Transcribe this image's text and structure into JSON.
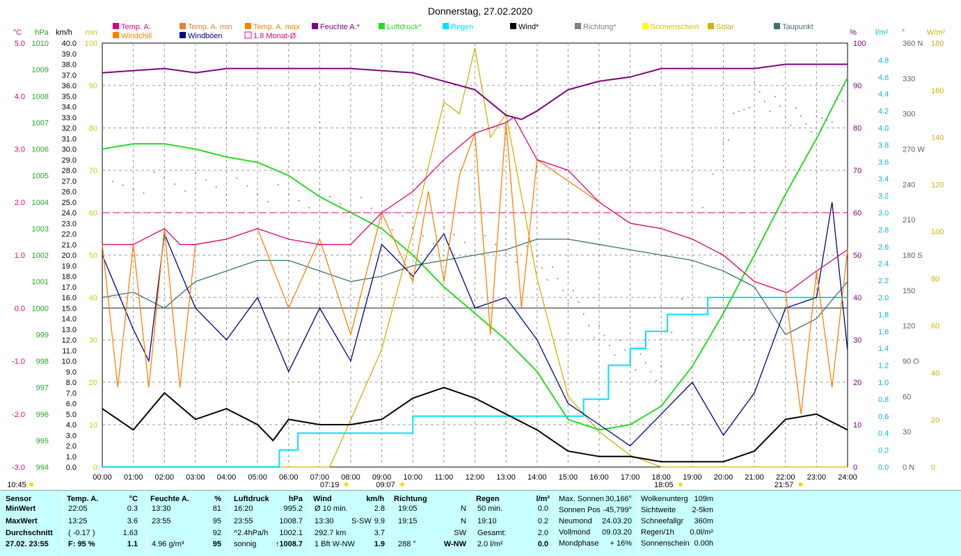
{
  "title": "Donnerstag, 27.02.2020",
  "legend": [
    {
      "label": "Temp. A.",
      "color": "#e0007a",
      "row": 0,
      "col": 0,
      "box": "solid"
    },
    {
      "label": "Temp. A. min",
      "color": "#ee7a30",
      "row": 0,
      "col": 1,
      "box": "solid"
    },
    {
      "label": "Temp. A. max",
      "color": "#ff7f00",
      "row": 0,
      "col": 2,
      "box": "solid"
    },
    {
      "label": "Feuchte A.*",
      "color": "#800080",
      "row": 0,
      "col": 3,
      "box": "solid"
    },
    {
      "label": "Luftdruck*",
      "color": "#22dd22",
      "row": 0,
      "col": 4,
      "box": "solid"
    },
    {
      "label": "Regen",
      "color": "#00e0ff",
      "row": 0,
      "col": 5,
      "box": "solid"
    },
    {
      "label": "Wind*",
      "color": "#000000",
      "row": 0,
      "col": 6,
      "box": "solid"
    },
    {
      "label": "Richtung*",
      "color": "#808080",
      "row": 0,
      "col": 7,
      "box": "solid"
    },
    {
      "label": "Sonnenschein",
      "color": "#ffff00",
      "row": 0,
      "col": 8,
      "box": "solid"
    },
    {
      "label": "Solar",
      "color": "#d4b000",
      "row": 0,
      "col": 9,
      "box": "solid"
    },
    {
      "label": "Taupunkt",
      "color": "#3a7070",
      "row": 0,
      "col": 10,
      "box": "solid"
    },
    {
      "label": "Windchill",
      "color": "#ff7f00",
      "row": 1,
      "col": 0,
      "box": "solid"
    },
    {
      "label": "Windböen",
      "color": "#000080",
      "row": 1,
      "col": 1,
      "box": "solid"
    },
    {
      "label": "1.8 Monat-Ø",
      "color": "#e0007a",
      "row": 1,
      "col": 2,
      "box": "hollow"
    }
  ],
  "axes": {
    "temp": {
      "unit": "°C",
      "ticks": [
        "5.0",
        "4.0",
        "3.0",
        "2.0",
        "1.0",
        "0.0",
        "-1.0",
        "-2.0",
        "-3.0"
      ],
      "color": "#e0007a"
    },
    "pressure": {
      "unit": "hPa",
      "ticks": [
        "1010",
        "1009",
        "1008",
        "1007",
        "1006",
        "1005",
        "1004",
        "1003",
        "1002",
        "1001",
        "1000",
        "999",
        "998",
        "997",
        "996",
        "995",
        "994"
      ],
      "color": "#22aa22"
    },
    "wind": {
      "unit": "km/h",
      "ticks": [
        "40.0",
        "39.0",
        "38.0",
        "37.0",
        "36.0",
        "35.0",
        "34.0",
        "33.0",
        "32.0",
        "31.0",
        "30.0",
        "29.0",
        "28.0",
        "27.0",
        "26.0",
        "25.0",
        "24.0",
        "23.0",
        "22.0",
        "21.0",
        "20.0",
        "19.0",
        "18.0",
        "17.0",
        "16.0",
        "15.0",
        "14.0",
        "13.0",
        "12.0",
        "11.0",
        "10.0",
        "9.0",
        "8.0",
        "7.0",
        "6.0",
        "5.0",
        "4.0",
        "3.0",
        "2.0",
        "1.0",
        "0.0"
      ],
      "color": "#000000"
    },
    "sun": {
      "unit": "min",
      "ticks": [
        "100",
        "90",
        "80",
        "70",
        "60",
        "50",
        "40",
        "30",
        "20",
        "10",
        "0"
      ],
      "color": "#d4b000"
    },
    "humidity": {
      "unit": "%",
      "ticks": [
        "100",
        "90",
        "80",
        "70",
        "60",
        "50",
        "40",
        "30",
        "20",
        "10",
        "0"
      ],
      "color": "#800080"
    },
    "rain": {
      "unit": "l/m²",
      "ticks": [
        "4.8",
        "4.6",
        "4.4",
        "4.2",
        "4.0",
        "3.8",
        "3.6",
        "3.4",
        "3.2",
        "3.0",
        "2.8",
        "2.6",
        "2.4",
        "2.2",
        "2.0",
        "1.8",
        "1.6",
        "1.4",
        "1.2",
        "1.0",
        "0.8",
        "0.6",
        "0.4",
        "0.2",
        "0.0"
      ],
      "color": "#00bcd4"
    },
    "direction": {
      "unit": "°",
      "ticks": [
        "360 N",
        "330",
        "300",
        "270 W",
        "240",
        "210",
        "180 S",
        "150",
        "120",
        "90 O",
        "60",
        "30",
        "0 N"
      ],
      "color": "#606060"
    },
    "solar": {
      "unit": "W/m²",
      "ticks": [
        "180",
        "160",
        "140",
        "120",
        "100",
        "80",
        "60",
        "40",
        "20",
        "0"
      ],
      "color": "#d4b000"
    },
    "time": {
      "ticks": [
        "00:00",
        "01:00",
        "02:00",
        "03:00",
        "04:00",
        "05:00",
        "06:00",
        "07:00",
        "08:00",
        "09:00",
        "10:00",
        "11:00",
        "12:00",
        "13:00",
        "14:00",
        "15:00",
        "16:00",
        "17:00",
        "18:00",
        "19:00",
        "20:00",
        "21:00",
        "22:00",
        "23:00",
        "24:00"
      ]
    }
  },
  "events": [
    {
      "time": "10:45",
      "kind": "moon",
      "t": null
    },
    {
      "time": "07:19",
      "kind": "sunrise",
      "t": 7.32
    },
    {
      "time": "09:07",
      "kind": "noon",
      "t": 9.12
    },
    {
      "time": "18:05",
      "kind": "sunset",
      "t": 18.08
    },
    {
      "time": "21:57",
      "kind": "moonset",
      "t": 21.95
    }
  ],
  "chart_data": {
    "type": "line",
    "title": "Donnerstag, 27.02.2020",
    "x_unit": "hours",
    "monthly_avg_temp": 1.8,
    "zero_line_temp": 0.0,
    "series": [
      {
        "name": "Feuchte A.*",
        "axis": "humidity",
        "color": "#800080",
        "x": [
          0,
          1,
          2,
          3,
          4,
          6,
          8,
          10,
          11,
          12,
          13,
          13.5,
          14,
          15,
          16,
          17,
          18,
          19,
          20,
          21,
          22,
          23,
          24
        ],
        "y": [
          93,
          93.5,
          94,
          93,
          94,
          94,
          94,
          93,
          91,
          89,
          83,
          82,
          84,
          89,
          91,
          92,
          94,
          94,
          94,
          94,
          95,
          95,
          95
        ]
      },
      {
        "name": "Luftdruck*",
        "axis": "pressure",
        "color": "#22dd22",
        "x": [
          0,
          1,
          2,
          3,
          4,
          5,
          6,
          7,
          8,
          9,
          10,
          11,
          12,
          13,
          14,
          15,
          16,
          17,
          18,
          19,
          20,
          21,
          22,
          23,
          24
        ],
        "y": [
          1006.0,
          1006.2,
          1006.2,
          1006.0,
          1005.7,
          1005.5,
          1005.0,
          1004.2,
          1003.6,
          1003.0,
          1002.0,
          1000.8,
          999.8,
          998.8,
          997.6,
          995.8,
          995.4,
          995.6,
          996.3,
          997.8,
          999.8,
          1002.0,
          1004.3,
          1006.4,
          1008.7
        ]
      },
      {
        "name": "Temp. A.",
        "axis": "temp",
        "color": "#e0007a",
        "x": [
          0,
          1,
          2,
          2.5,
          3,
          4,
          5,
          6,
          7,
          8,
          9,
          10,
          11,
          12,
          13,
          13.25,
          14,
          15,
          16,
          17,
          18,
          19,
          20,
          21,
          22,
          22.08,
          23,
          24
        ],
        "y": [
          1.2,
          1.2,
          1.5,
          1.2,
          1.2,
          1.3,
          1.5,
          1.3,
          1.2,
          1.2,
          1.8,
          2.2,
          2.8,
          3.3,
          3.5,
          3.6,
          2.8,
          2.6,
          2.0,
          1.6,
          1.5,
          1.3,
          1.0,
          0.5,
          0.3,
          0.3,
          0.7,
          1.1
        ]
      },
      {
        "name": "Taupunkt",
        "axis": "temp",
        "color": "#3a7070",
        "x": [
          0,
          1,
          2,
          3,
          4,
          5,
          6,
          7,
          8,
          9,
          10,
          11,
          12,
          13,
          14,
          15,
          16,
          17,
          18,
          19,
          20,
          21,
          22,
          23,
          24
        ],
        "y": [
          0.2,
          0.3,
          0.0,
          0.5,
          0.7,
          0.9,
          0.9,
          0.7,
          0.5,
          0.6,
          0.8,
          0.9,
          1.0,
          1.1,
          1.3,
          1.3,
          1.2,
          1.1,
          1.0,
          0.9,
          0.7,
          0.4,
          -0.5,
          -0.2,
          0.5
        ]
      },
      {
        "name": "Wind*",
        "axis": "wind",
        "color": "#000000",
        "x": [
          0,
          1,
          2,
          3,
          4,
          5,
          5.5,
          6,
          7,
          8,
          9,
          10,
          11,
          12,
          13,
          14,
          15,
          16,
          17,
          18,
          19,
          20,
          21,
          22,
          23,
          24
        ],
        "y": [
          5.5,
          3.5,
          7.0,
          4.5,
          5.5,
          4.0,
          2.5,
          4.5,
          4.0,
          4.0,
          4.5,
          6.5,
          7.5,
          6.5,
          5.0,
          3.5,
          1.5,
          1.0,
          1.0,
          0.5,
          0.5,
          0.5,
          1.5,
          4.5,
          5.0,
          3.5
        ]
      },
      {
        "name": "Windböen",
        "axis": "wind",
        "color": "#000080",
        "x": [
          0,
          1,
          1.5,
          2,
          3,
          4,
          5,
          6,
          7,
          8,
          9,
          10,
          11,
          12,
          13,
          14,
          15,
          16,
          17,
          18,
          19,
          20,
          21,
          22,
          23,
          23.5,
          24
        ],
        "y": [
          20,
          13,
          10,
          22,
          15,
          12,
          16,
          9,
          15,
          10,
          21,
          18,
          22,
          15,
          16,
          12,
          6,
          4,
          2,
          5,
          8,
          3,
          7,
          15,
          16,
          25,
          11
        ]
      },
      {
        "name": "Temp. A. max",
        "axis": "temp",
        "color": "#ff7f00",
        "x": [
          0,
          0.5,
          1,
          1.5,
          2,
          2.5,
          3,
          4,
          5,
          6,
          7,
          8,
          9,
          10,
          10.5,
          11,
          11.5,
          12,
          12.5,
          13,
          13.5,
          14,
          16,
          17,
          18,
          19,
          20,
          21,
          22,
          22.5,
          23,
          23.5,
          24
        ],
        "y": [
          1.2,
          -1.5,
          1.2,
          -1.5,
          1.5,
          -1.5,
          1.2,
          1.3,
          1.5,
          0,
          1.3,
          -0.5,
          1.8,
          0.5,
          2.2,
          0.5,
          2.5,
          3.3,
          -0.5,
          3.5,
          0,
          2.8,
          2.0,
          1.6,
          1.5,
          1.3,
          1.0,
          0.5,
          0.3,
          -2.0,
          0.7,
          -1.5,
          1.1
        ]
      },
      {
        "name": "Solar",
        "axis": "solar",
        "color": "#d4b000",
        "x": [
          0,
          7.32,
          8,
          9,
          10,
          11,
          11.5,
          12,
          12.5,
          13,
          14,
          15,
          16,
          17,
          18,
          18.08,
          24
        ],
        "y": [
          0,
          0,
          20,
          50,
          100,
          155,
          150,
          178,
          140,
          150,
          80,
          30,
          15,
          5,
          0,
          0,
          0
        ]
      },
      {
        "name": "Regen",
        "axis": "rain",
        "color": "#00e0ff",
        "x": [
          0,
          5.7,
          6.3,
          9.0,
          10,
          15.0,
          15.5,
          16.3,
          17.0,
          17.5,
          18.2,
          19.0,
          19.5,
          24
        ],
        "y": [
          0,
          0.2,
          0.4,
          0.4,
          0.6,
          0.6,
          0.8,
          1.2,
          1.4,
          1.6,
          1.8,
          1.8,
          2.0,
          2.0
        ]
      },
      {
        "name": "Richtung*",
        "axis": "direction",
        "color": "#808080",
        "x": [
          0,
          2,
          4,
          6,
          8,
          10,
          12,
          14,
          15,
          16,
          17,
          18,
          20,
          21,
          22,
          23,
          24
        ],
        "y": [
          235,
          245,
          240,
          230,
          225,
          200,
          190,
          175,
          145,
          115,
          95,
          80,
          280,
          320,
          300,
          290,
          310
        ]
      }
    ]
  },
  "footer": {
    "sensor": {
      "header": "Sensor",
      "rows": [
        "MinWert",
        "MaxWert",
        "Durchschnitt",
        "27.02. 23:55"
      ]
    },
    "temp": {
      "header": "Temp. A.",
      "unit": "°C",
      "rows": [
        [
          "22:05",
          "0.3"
        ],
        [
          "13:25",
          "3.6"
        ],
        [
          "( -0.17 )",
          "1.63"
        ],
        [
          "F: 95 %",
          "1.1"
        ]
      ]
    },
    "humidity": {
      "header": "Feuchte A.",
      "unit": "%",
      "rows": [
        [
          "13:30",
          "81"
        ],
        [
          "23:55",
          "95"
        ],
        [
          "",
          "92"
        ],
        [
          "4.96 g/m³",
          "95"
        ]
      ]
    },
    "pressure": {
      "header": "Luftdruck",
      "unit": "hPa",
      "rows": [
        [
          "16:20",
          "995.2"
        ],
        [
          "23:55",
          "1008.7"
        ],
        [
          "^2.4hPa/h",
          "1002.1"
        ],
        [
          "sonnig",
          "↑1008.7"
        ]
      ]
    },
    "wind": {
      "header": "Wind",
      "unit": "km/h",
      "rows": [
        [
          "Ø 10 min.",
          "",
          "2.8"
        ],
        [
          "13:30",
          "S-SW",
          "9.9"
        ],
        [
          "292.7 km",
          "",
          "3.7"
        ],
        [
          "1 Bft W-NW",
          "",
          "1.9"
        ]
      ]
    },
    "direction": {
      "header": "Richtung",
      "rows": [
        [
          "19:05",
          "N"
        ],
        [
          "19:15",
          "N"
        ],
        [
          "",
          "SW"
        ],
        [
          "288 °",
          "W-NW"
        ]
      ]
    },
    "rain": {
      "header": "Regen",
      "unit": "l/m²",
      "rows": [
        [
          "50 min.",
          "0.0"
        ],
        [
          "19:10",
          "0.2"
        ],
        [
          "Gesamt:",
          "2.0"
        ],
        [
          "2.0 l/m²",
          "0.0"
        ]
      ]
    },
    "astro": {
      "rows": [
        [
          "Max. Sonnen",
          "30,166°"
        ],
        [
          "Sonnen Pos",
          "-45,799°"
        ],
        [
          "Neumond",
          "24.03.20"
        ],
        [
          "Vollmond",
          "09.03.20"
        ],
        [
          "Mondphase",
          "+ 16%"
        ]
      ]
    },
    "misc": {
      "rows": [
        [
          "Wolkenunterg",
          "109m"
        ],
        [
          "Sichtweite",
          "2-5km"
        ],
        [
          "Schneefallgr",
          "360m"
        ],
        [
          "Regen/1h",
          "0.0l/m²"
        ],
        [
          "Sonnenschein",
          "0.00h"
        ]
      ]
    }
  }
}
